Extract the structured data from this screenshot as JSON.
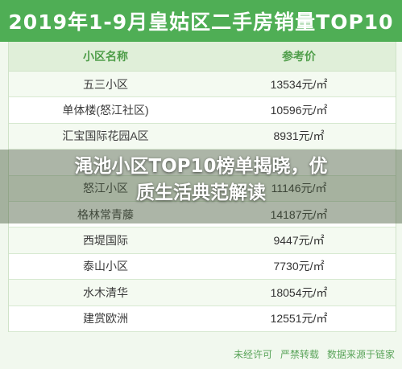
{
  "title": "2019年1-9月皇姑区二手房销量TOP10",
  "table": {
    "headers": [
      "小区名称",
      "参考价"
    ],
    "rows": [
      {
        "name": "五三小区",
        "price": "13534元/㎡"
      },
      {
        "name": "单体楼(怒江社区)",
        "price": "10596元/㎡"
      },
      {
        "name": "汇宝国际花园A区",
        "price": "8931元/㎡"
      },
      {
        "name": "",
        "price": ""
      },
      {
        "name": "怒江小区",
        "price": "11146元/㎡"
      },
      {
        "name": "格林常青藤",
        "price": "14187元/㎡"
      },
      {
        "name": "西堤国际",
        "price": "9447元/㎡"
      },
      {
        "name": "泰山小区",
        "price": "7730元/㎡"
      },
      {
        "name": "水木清华",
        "price": "18054元/㎡"
      },
      {
        "name": "建赏欧洲",
        "price": "12551元/㎡"
      }
    ]
  },
  "footer": {
    "notice_1": "未经许可",
    "notice_2": "严禁转载",
    "notice_3": "数据来源于链家"
  },
  "headline": {
    "line1": "渑池小区TOP10榜单揭晓，优",
    "line2": "质生活典范解读"
  },
  "colors": {
    "brand_green": "#4fae55",
    "header_bg": "#e0efd9"
  }
}
